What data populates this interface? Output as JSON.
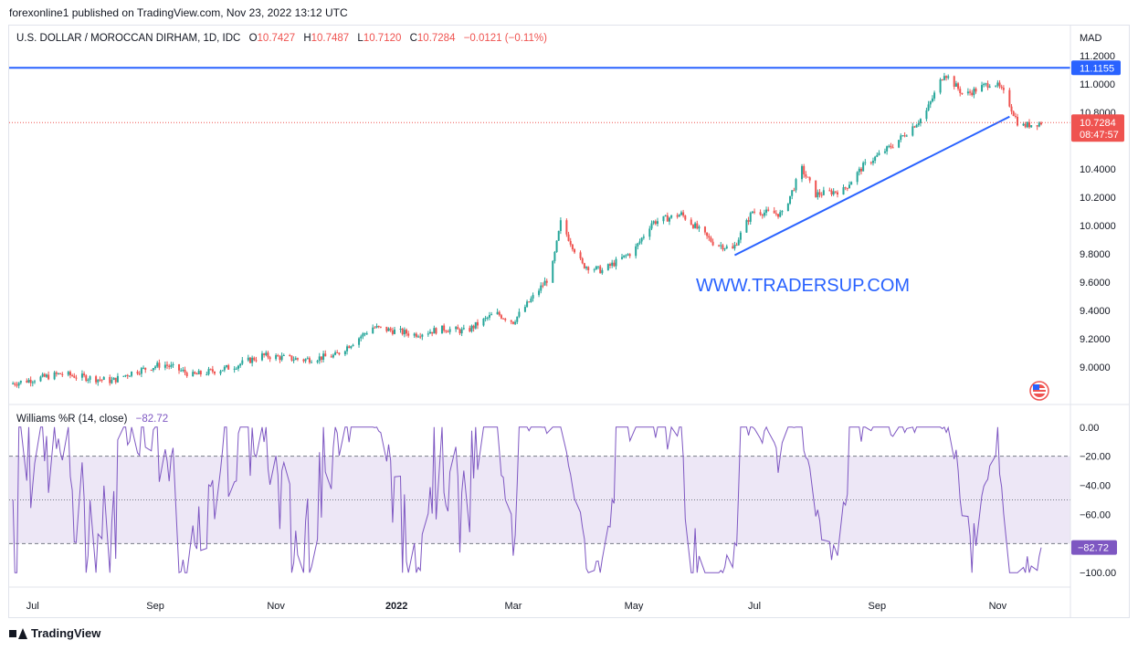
{
  "header": {
    "published": "forexonline1 published on TradingView.com, Nov 23, 2022 13:12 UTC"
  },
  "legend": {
    "symbol": "U.S. DOLLAR / MOROCCAN DIRHAM, 1D, IDC",
    "o_label": "O",
    "o": "10.7427",
    "h_label": "H",
    "h": "10.7487",
    "l_label": "L",
    "l": "10.7120",
    "c_label": "C",
    "c": "10.7284",
    "change": "−0.0121 (−0.11%)"
  },
  "indicator": {
    "name": "Williams %R (14, close)",
    "value": "−82.72"
  },
  "watermark": "WWW.TRADERSUP.COM",
  "footer": {
    "brand": "TradingView"
  },
  "colors": {
    "up": "#26a69a",
    "down": "#ef5350",
    "line": "#2962ff",
    "wr": "#7e57c2",
    "wr_fill": "#ede7f6"
  },
  "chart_data": [
    {
      "type": "candlestick",
      "currency": "MAD",
      "yticks": [
        "11.2000",
        "11.0000",
        "10.8000",
        "10.4000",
        "10.2000",
        "10.0000",
        "9.8000",
        "9.6000",
        "9.4000",
        "9.2000",
        "9.0000"
      ],
      "ylim": [
        8.85,
        11.24
      ],
      "xticks": [
        "Jul",
        "Sep",
        "Nov",
        "2022",
        "Mar",
        "May",
        "Jul",
        "Sep",
        "Nov"
      ],
      "x_range": [
        "2021-06-20",
        "2022-11-23"
      ],
      "close_anchors": [
        [
          "2021-06-20",
          8.88
        ],
        [
          "2021-07-15",
          8.95
        ],
        [
          "2021-08-10",
          8.9
        ],
        [
          "2021-08-20",
          8.96
        ],
        [
          "2021-09-05",
          9.02
        ],
        [
          "2021-09-20",
          8.94
        ],
        [
          "2021-10-10",
          9.0
        ],
        [
          "2021-10-25",
          9.08
        ],
        [
          "2021-11-15",
          9.05
        ],
        [
          "2021-12-01",
          9.08
        ],
        [
          "2021-12-20",
          9.28
        ],
        [
          "2022-01-10",
          9.23
        ],
        [
          "2022-01-25",
          9.27
        ],
        [
          "2022-02-05",
          9.25
        ],
        [
          "2022-02-20",
          9.38
        ],
        [
          "2022-03-01",
          9.32
        ],
        [
          "2022-03-20",
          9.65
        ],
        [
          "2022-03-25",
          10.02
        ],
        [
          "2022-04-05",
          9.72
        ],
        [
          "2022-04-15",
          9.68
        ],
        [
          "2022-05-01",
          9.82
        ],
        [
          "2022-05-10",
          10.02
        ],
        [
          "2022-05-25",
          10.08
        ],
        [
          "2022-06-10",
          9.88
        ],
        [
          "2022-06-20",
          9.83
        ],
        [
          "2022-06-30",
          10.1
        ],
        [
          "2022-07-15",
          10.08
        ],
        [
          "2022-07-25",
          10.4
        ],
        [
          "2022-08-01",
          10.22
        ],
        [
          "2022-08-15",
          10.25
        ],
        [
          "2022-08-25",
          10.42
        ],
        [
          "2022-09-10",
          10.58
        ],
        [
          "2022-09-25",
          10.78
        ],
        [
          "2022-10-05",
          11.08
        ],
        [
          "2022-10-15",
          10.92
        ],
        [
          "2022-10-30",
          11.02
        ],
        [
          "2022-11-05",
          10.92
        ],
        [
          "2022-11-12",
          10.7
        ],
        [
          "2022-11-23",
          10.7284
        ]
      ],
      "horizontal_line": {
        "value": 11.1155,
        "label": "11.1155"
      },
      "trendline": {
        "from": [
          "2022-06-21",
          9.79
        ],
        "to": [
          "2022-11-07",
          10.77
        ]
      },
      "last_price": {
        "label": "10.7284",
        "countdown": "08:47:57",
        "value": 10.7284
      }
    },
    {
      "type": "line",
      "name": "Williams %R (14, close)",
      "yticks": [
        "0.00",
        "−20.00",
        "−40.00",
        "−60.00",
        "−100.00"
      ],
      "ylim": [
        -103,
        3
      ],
      "bands": {
        "upper": -20,
        "middle": -50,
        "lower": -80
      },
      "last_value": -82.72,
      "last_label": "−82.72"
    }
  ]
}
